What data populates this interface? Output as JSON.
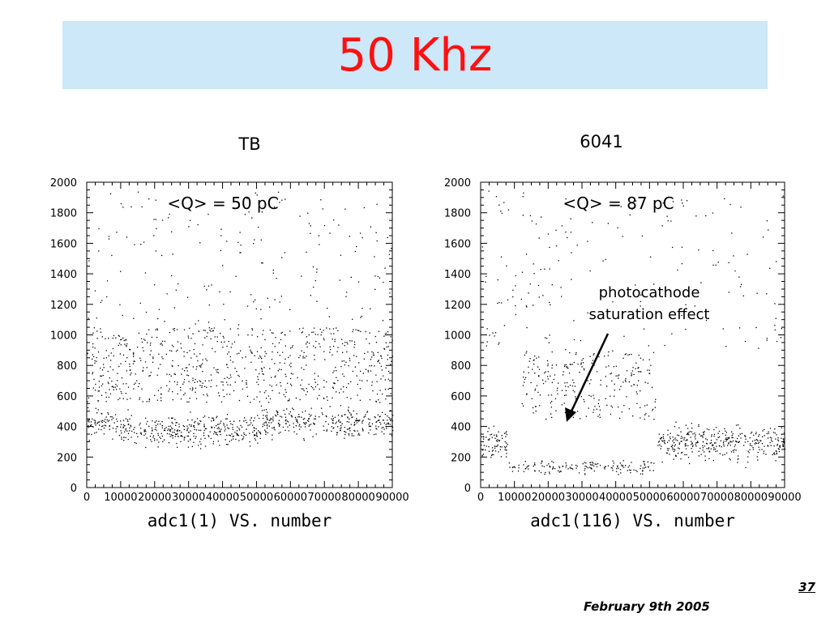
{
  "slide": {
    "title": "50 Khz",
    "footer_date": "February 9th 2005",
    "page_number": "37"
  },
  "chart_data": [
    {
      "type": "scatter",
      "panel_label": "TB",
      "annotation": "<Q> = 50 pC",
      "xlabel": "adc1(1) VS. number",
      "xlim": [
        0,
        90000
      ],
      "ylim": [
        0,
        2000
      ],
      "x_ticks": [
        "0",
        "10000",
        "20000",
        "30000",
        "40000",
        "50000",
        "60000",
        "70000",
        "80000",
        "90000"
      ],
      "y_ticks": [
        "0",
        "200",
        "400",
        "600",
        "800",
        "1000",
        "1200",
        "1400",
        "1600",
        "1800",
        "2000"
      ],
      "x_data_max": 90000,
      "bands": [
        {
          "x_range": [
            0,
            9000
          ],
          "y_range": [
            300,
            560
          ]
        },
        {
          "x_range": [
            9000,
            51000
          ],
          "y_range": [
            230,
            520
          ]
        },
        {
          "x_range": [
            51000,
            90000
          ],
          "y_range": [
            290,
            560
          ]
        },
        {
          "x_range": [
            0,
            90000
          ],
          "y_range": [
            560,
            1050
          ]
        }
      ],
      "outliers_y_range": [
        1050,
        1950
      ]
    },
    {
      "type": "scatter",
      "panel_label": "6041",
      "annotation": "<Q> = 87 pC",
      "xlabel": "adc1(116) VS. number",
      "callout": "photocathode\nsaturation effect",
      "xlim": [
        0,
        90000
      ],
      "ylim": [
        0,
        2000
      ],
      "x_ticks": [
        "0",
        "10000",
        "20000",
        "30000",
        "40000",
        "50000",
        "60000",
        "70000",
        "80000",
        "90000"
      ],
      "y_ticks": [
        "0",
        "200",
        "400",
        "600",
        "800",
        "1000",
        "1200",
        "1400",
        "1600",
        "1800",
        "2000"
      ],
      "x_data_max": 90000,
      "bands": [
        {
          "x_range": [
            0,
            8000
          ],
          "y_range": [
            130,
            440
          ]
        },
        {
          "x_range": [
            8000,
            52000
          ],
          "y_range": [
            80,
            200
          ]
        },
        {
          "x_range": [
            52000,
            90000
          ],
          "y_range": [
            130,
            460
          ]
        }
      ],
      "sparse_regions": [
        {
          "x_range": [
            12000,
            52000
          ],
          "y_range": [
            450,
            900
          ]
        }
      ],
      "outliers_y_range": [
        900,
        1950
      ]
    }
  ]
}
